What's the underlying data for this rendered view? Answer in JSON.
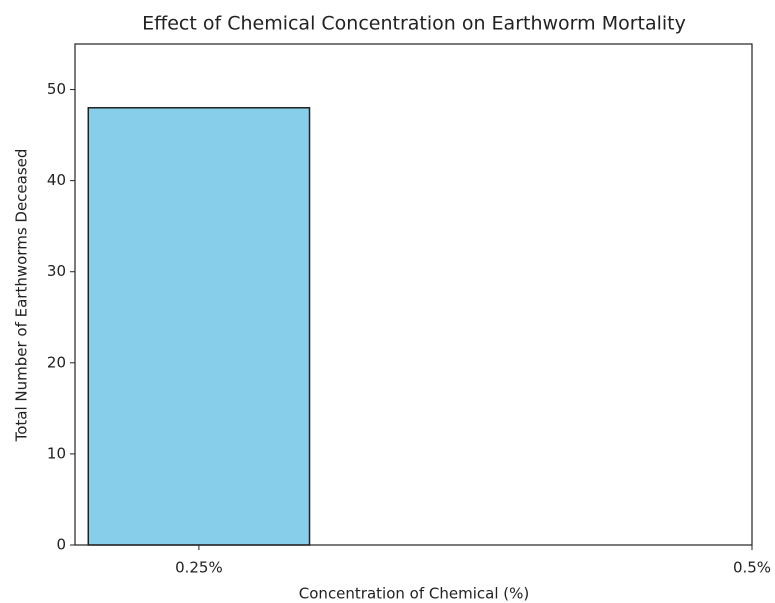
{
  "chart_data": {
    "type": "bar",
    "title": "Effect of Chemical Concentration on Earthworm Mortality",
    "x_label": "Concentration of Chemical (%)",
    "y_label": "Total Number of Earthworms Deceased",
    "categories": [
      "0.25%",
      "0.5%"
    ],
    "values": [
      48,
      0
    ],
    "color": "#87ceeb",
    "edge_color": "#222222",
    "ylim": [
      0,
      55
    ],
    "yticks": [
      0,
      10,
      20,
      30,
      40,
      50
    ],
    "grid": false
  }
}
